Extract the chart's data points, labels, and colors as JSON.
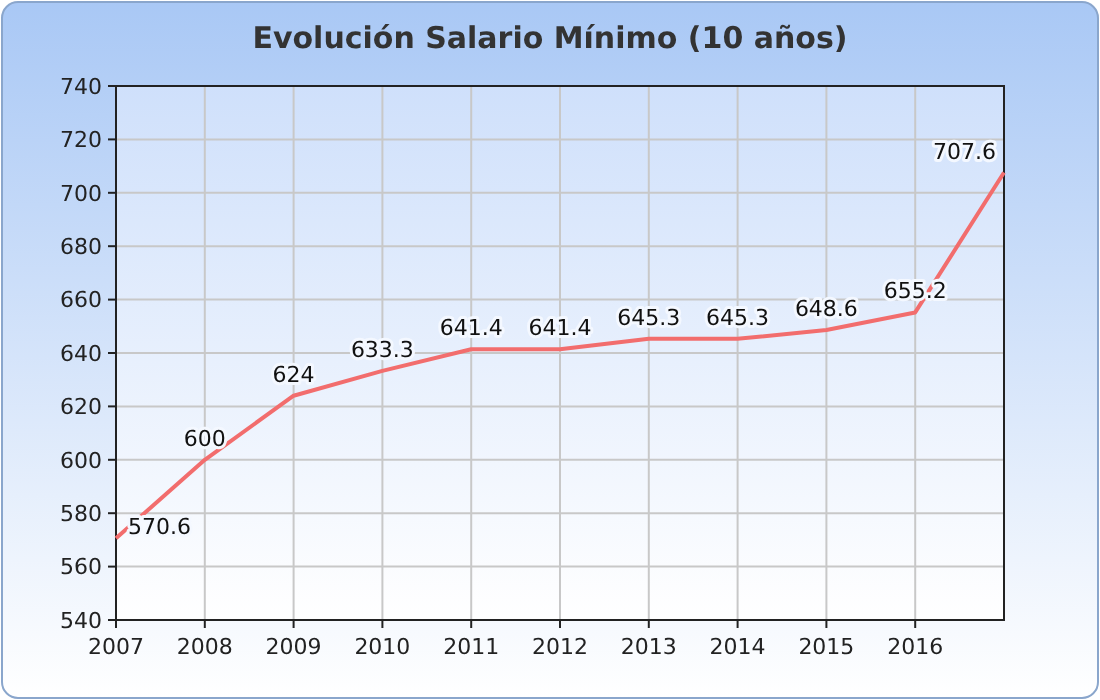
{
  "chart_data": {
    "type": "line",
    "title": "Evolución Salario Mínimo (10 años)",
    "x": [
      2007,
      2008,
      2009,
      2010,
      2011,
      2012,
      2013,
      2014,
      2015,
      2016,
      2017
    ],
    "series": [
      {
        "color": "#f26d6d",
        "values": [
          570.6,
          600,
          624,
          633.3,
          641.4,
          641.4,
          645.3,
          645.3,
          648.6,
          655.2,
          707.6
        ]
      }
    ],
    "xlim": [
      2007,
      2017
    ],
    "xticks": [
      2007,
      2008,
      2009,
      2010,
      2011,
      2012,
      2013,
      2014,
      2015,
      2016
    ],
    "ylim": [
      540,
      740
    ],
    "yticks": [
      540,
      560,
      580,
      600,
      620,
      640,
      660,
      680,
      700,
      720,
      740
    ],
    "grid": true,
    "data_labels": true,
    "marker": "none",
    "line_style": "solid"
  }
}
